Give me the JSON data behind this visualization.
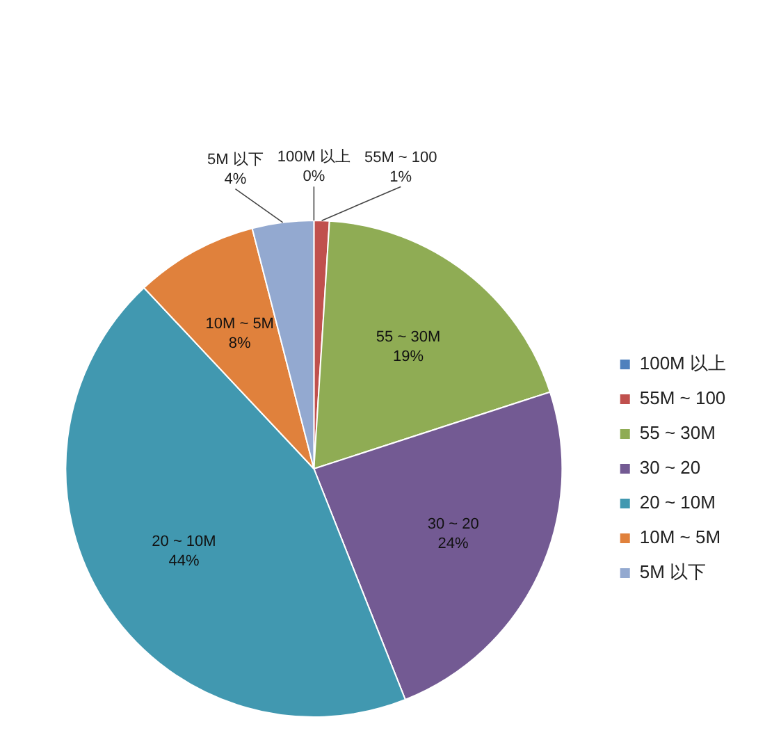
{
  "chart_data": {
    "type": "pie",
    "categories": [
      "100M 以上",
      "55M ~ 100",
      "55 ~ 30M",
      "30 ~ 20",
      "20 ~ 10M",
      "10M ~ 5M",
      "5M 以下"
    ],
    "values": [
      0,
      1,
      19,
      24,
      44,
      8,
      4
    ],
    "value_labels": [
      "0%",
      "1%",
      "19%",
      "24%",
      "44%",
      "8%",
      "4%"
    ],
    "colors": [
      "#4f81bd",
      "#c0504d",
      "#8fac54",
      "#735a93",
      "#4198b0",
      "#e0813c",
      "#93a9d0"
    ],
    "legend": "right"
  }
}
